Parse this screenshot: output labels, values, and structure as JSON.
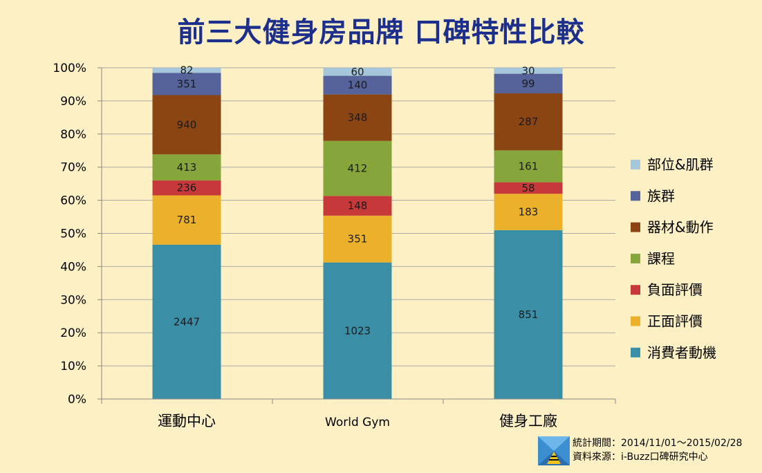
{
  "title": "前三大健身房品牌 口碑特性比較",
  "footer": {
    "period": "統計期間：2014/11/01～2015/02/28",
    "source": "資料來源：i-Buzz口碑研究中心"
  },
  "chart_data": {
    "type": "bar",
    "stacked": "percent",
    "title": "前三大健身房品牌 口碑特性比較",
    "categories": [
      "運動中心",
      "World Gym",
      "健身工廠"
    ],
    "y_ticks": [
      "0%",
      "10%",
      "20%",
      "30%",
      "40%",
      "50%",
      "60%",
      "70%",
      "80%",
      "90%",
      "100%"
    ],
    "ylim": [
      0,
      100
    ],
    "grid": true,
    "legend_position": "right",
    "series": [
      {
        "name": "消費者動機",
        "color": "#3A8FA7",
        "values": [
          2447,
          1023,
          851
        ]
      },
      {
        "name": "正面評價",
        "color": "#EBB12B",
        "values": [
          781,
          351,
          183
        ]
      },
      {
        "name": "負面評價",
        "color": "#C7383A",
        "values": [
          236,
          148,
          58
        ]
      },
      {
        "name": "課程",
        "color": "#86A53A",
        "values": [
          413,
          412,
          161
        ]
      },
      {
        "name": "器材&動作",
        "color": "#8B4513",
        "values": [
          940,
          348,
          287
        ]
      },
      {
        "name": "族群",
        "color": "#55639A",
        "values": [
          351,
          140,
          99
        ]
      },
      {
        "name": "部位&肌群",
        "color": "#A5C7D9",
        "values": [
          82,
          60,
          30
        ]
      }
    ]
  }
}
